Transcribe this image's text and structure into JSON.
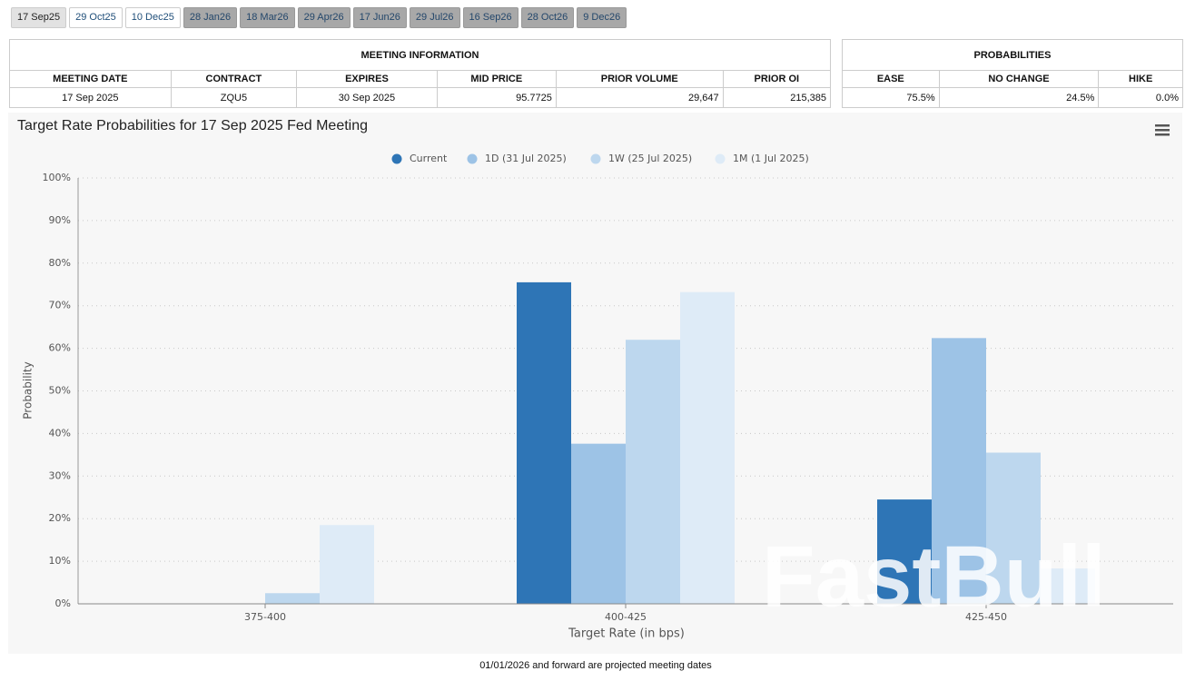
{
  "tabs": [
    "17 Sep25",
    "29 Oct25",
    "10 Dec25",
    "28 Jan26",
    "18 Mar26",
    "29 Apr26",
    "17 Jun26",
    "29 Jul26",
    "16 Sep26",
    "28 Oct26",
    "9 Dec26"
  ],
  "meeting_info": {
    "title": "MEETING INFORMATION",
    "headers": [
      "MEETING DATE",
      "CONTRACT",
      "EXPIRES",
      "MID PRICE",
      "PRIOR VOLUME",
      "PRIOR OI"
    ],
    "row": [
      "17 Sep 2025",
      "ZQU5",
      "30 Sep 2025",
      "95.7725",
      "29,647",
      "215,385"
    ]
  },
  "probabilities": {
    "title": "PROBABILITIES",
    "headers": [
      "EASE",
      "NO CHANGE",
      "HIKE"
    ],
    "row": [
      "75.5%",
      "24.5%",
      "0.0%"
    ]
  },
  "chart_data": {
    "type": "bar",
    "title": "Target Rate Probabilities for 17 Sep 2025 Fed Meeting",
    "x_label": "Target Rate (in bps)",
    "y_label": "Probability",
    "categories": [
      "375-400",
      "400-425",
      "425-450"
    ],
    "series": [
      {
        "name": "Current",
        "color": "#2e75b6",
        "values": [
          0,
          75.5,
          24.5
        ]
      },
      {
        "name": "1D (31 Jul 2025)",
        "color": "#9dc3e6",
        "values": [
          0,
          37.6,
          62.4
        ]
      },
      {
        "name": "1W (25 Jul 2025)",
        "color": "#bdd7ee",
        "values": [
          2.5,
          62.0,
          35.5
        ]
      },
      {
        "name": "1M (1 Jul 2025)",
        "color": "#deebf7",
        "values": [
          18.5,
          73.2,
          8.3
        ]
      }
    ],
    "ylim": [
      0,
      100
    ],
    "yticks": [
      {
        "value": 0,
        "label": "0%"
      },
      {
        "value": 10,
        "label": "10%"
      },
      {
        "value": 20,
        "label": "20%"
      },
      {
        "value": 30,
        "label": "30%"
      },
      {
        "value": 40,
        "label": "40%"
      },
      {
        "value": 50,
        "label": "50%"
      },
      {
        "value": 60,
        "label": "60%"
      },
      {
        "value": 70,
        "label": "70%"
      },
      {
        "value": 80,
        "label": "80%"
      },
      {
        "value": 90,
        "label": "90%"
      },
      {
        "value": 100,
        "label": "100%"
      }
    ],
    "grid": true,
    "legend": "top"
  },
  "watermark": "FastBull",
  "footnote": "01/01/2026 and forward are projected meeting dates"
}
